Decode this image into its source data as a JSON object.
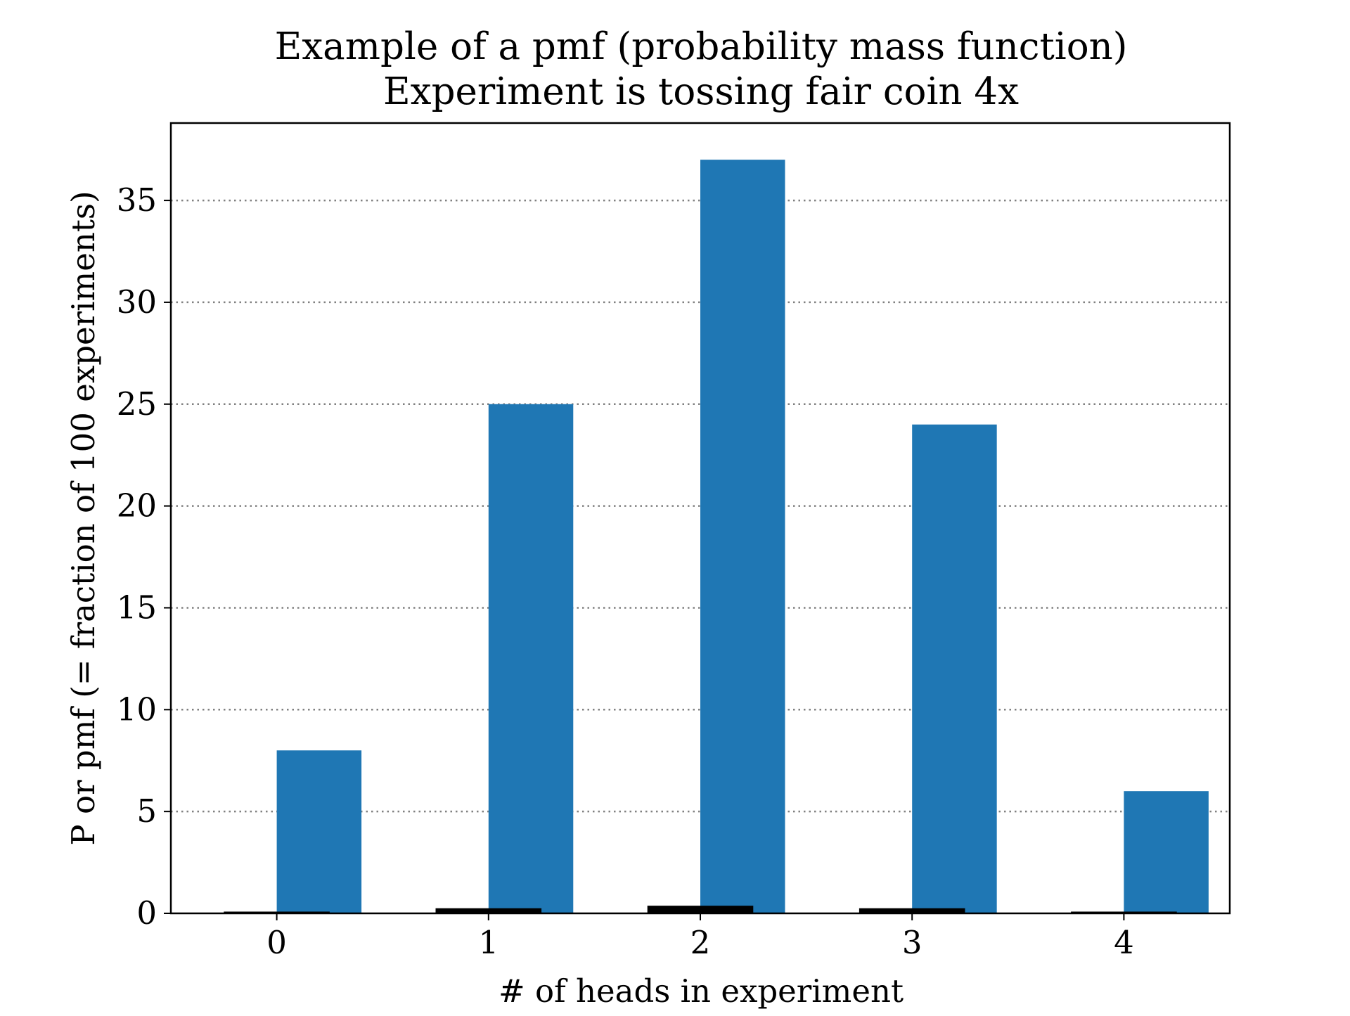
{
  "chart_data": {
    "type": "bar",
    "title": "Example of a pmf (probability mass function)",
    "subtitle": "Experiment is tossing fair coin 4x",
    "xlabel": "# of heads in experiment",
    "ylabel": "P or pmf (= fraction of 100 experiments)",
    "categories": [
      0,
      1,
      2,
      3,
      4
    ],
    "xlim": [
      -0.5,
      4.5
    ],
    "ylim": [
      0,
      38.8
    ],
    "xticks": [
      "0",
      "1",
      "2",
      "3",
      "4"
    ],
    "yticks": [
      "0",
      "5",
      "10",
      "15",
      "20",
      "25",
      "30",
      "35"
    ],
    "grid": "horizontal-dotted",
    "series": [
      {
        "values": [
          8,
          25,
          37,
          24,
          6
        ],
        "color": "#1f77b4",
        "align": "right-of-tick"
      },
      {
        "values": [
          0.0625,
          0.25,
          0.375,
          0.25,
          0.0625
        ],
        "color": "#000000",
        "align": "centered-on-tick"
      }
    ]
  }
}
